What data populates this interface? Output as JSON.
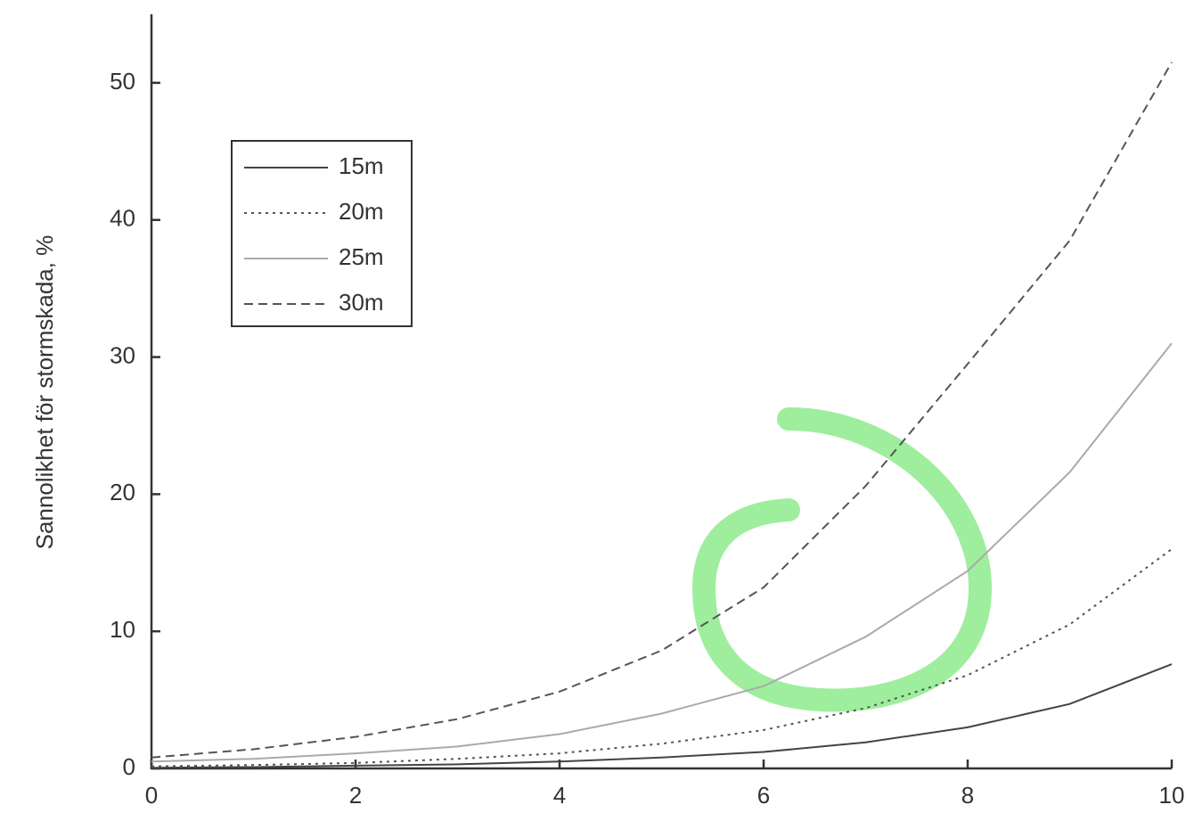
{
  "chart_data": {
    "type": "line",
    "y_label": "Sannolikhet för stormskada, %",
    "x": [
      0,
      1,
      2,
      3,
      4,
      5,
      6,
      7,
      8,
      9,
      10
    ],
    "series": [
      {
        "name": "15m",
        "color": "#444444",
        "dash": "solid",
        "values": [
          0.05,
          0.1,
          0.2,
          0.3,
          0.5,
          0.8,
          1.2,
          1.9,
          3.0,
          4.7,
          7.6
        ]
      },
      {
        "name": "20m",
        "color": "#555555",
        "dash": "dotted",
        "values": [
          0.15,
          0.25,
          0.4,
          0.7,
          1.1,
          1.8,
          2.8,
          4.4,
          6.8,
          10.5,
          16
        ]
      },
      {
        "name": "25m",
        "color": "#aaaaaa",
        "dash": "solid",
        "values": [
          0.5,
          0.7,
          1.1,
          1.6,
          2.5,
          4,
          6,
          9.6,
          14.4,
          21.6,
          31
        ]
      },
      {
        "name": "30m",
        "color": "#555555",
        "dash": "dashed",
        "values": [
          0.8,
          1.4,
          2.3,
          3.6,
          5.6,
          8.6,
          13.2,
          20.6,
          29.5,
          38.5,
          51.5
        ]
      }
    ],
    "xlim": [
      0,
      10
    ],
    "xticks": [
      0,
      2,
      4,
      6,
      8,
      10
    ],
    "ylim": [
      0,
      55
    ],
    "yticks": [
      0,
      10,
      20,
      30,
      40,
      50
    ],
    "grid": false,
    "legend": "upper-left"
  }
}
